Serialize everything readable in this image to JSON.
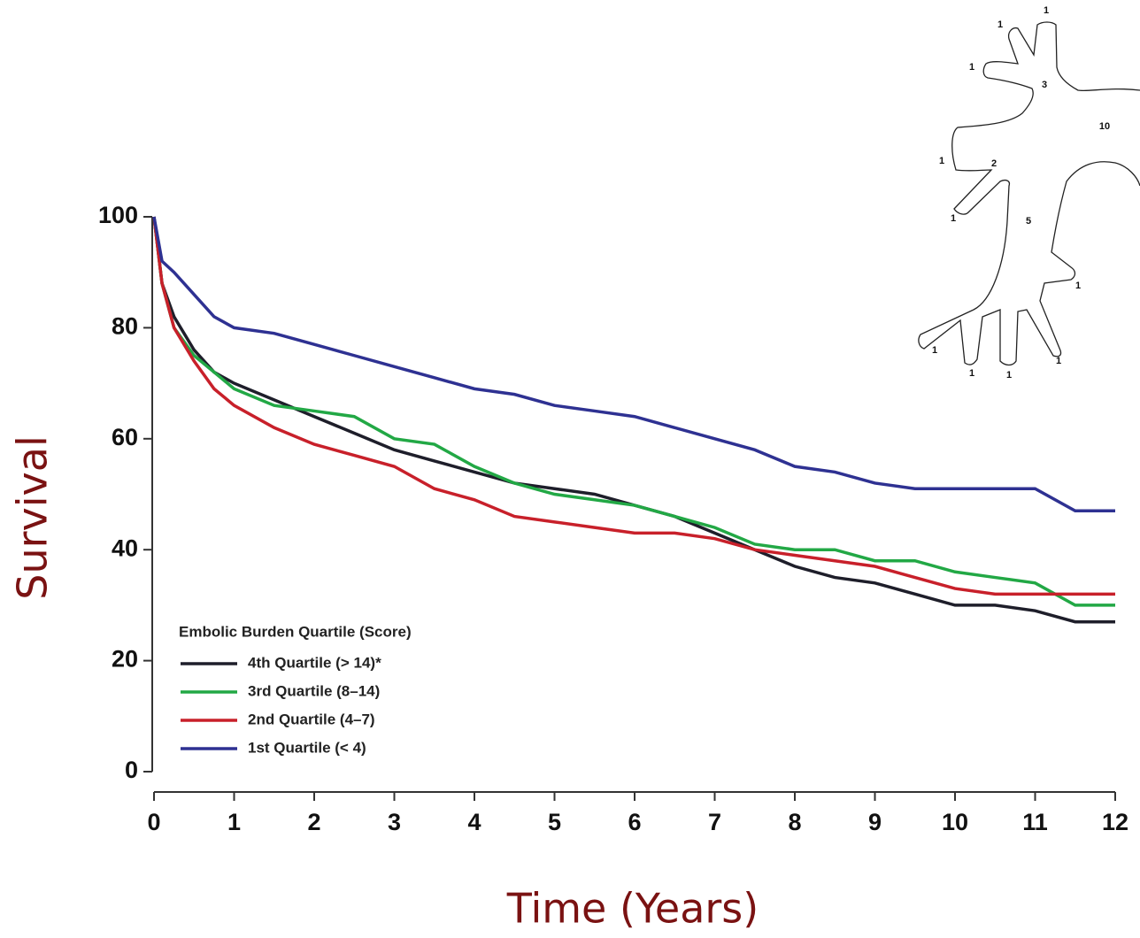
{
  "chart_data": {
    "type": "line",
    "step": true,
    "x_label": "Time (Years)",
    "y_label": "Survival",
    "legend_title": "Embolic Burden Quartile (Score)",
    "legend": "lower left",
    "x": [
      0,
      0.1,
      0.25,
      0.5,
      0.75,
      1,
      1.5,
      2,
      2.5,
      3,
      3.5,
      4,
      4.5,
      5,
      5.5,
      6,
      6.5,
      7,
      7.5,
      8,
      8.5,
      9,
      9.5,
      10,
      10.5,
      11,
      11.5,
      12
    ],
    "series": [
      {
        "name": "4th Quartile (> 14)*",
        "color": "#1e1e2a",
        "values": [
          100,
          88,
          82,
          76,
          72,
          70,
          67,
          64,
          61,
          58,
          56,
          54,
          52,
          51,
          50,
          48,
          46,
          43,
          40,
          37,
          35,
          34,
          32,
          30,
          30,
          29,
          27,
          27
        ]
      },
      {
        "name": "3rd Quartile (8–14)",
        "color": "#22a845",
        "values": [
          100,
          88,
          80,
          75,
          72,
          69,
          66,
          65,
          64,
          60,
          59,
          55,
          52,
          50,
          49,
          48,
          46,
          44,
          41,
          40,
          40,
          38,
          38,
          36,
          35,
          34,
          30,
          30
        ]
      },
      {
        "name": "2nd Quartile (4–7)",
        "color": "#c8202a",
        "values": [
          100,
          88,
          80,
          74,
          69,
          66,
          62,
          59,
          57,
          55,
          51,
          49,
          46,
          45,
          44,
          43,
          43,
          42,
          40,
          39,
          38,
          37,
          35,
          33,
          32,
          32,
          32,
          32
        ]
      },
      {
        "name": "1st Quartile (< 4)",
        "color": "#2e3192",
        "values": [
          100,
          92,
          90,
          86,
          82,
          80,
          79,
          77,
          75,
          73,
          71,
          69,
          68,
          66,
          65,
          64,
          62,
          60,
          58,
          55,
          54,
          52,
          51,
          51,
          51,
          51,
          47,
          47
        ]
      }
    ],
    "xlim": [
      0,
      12
    ],
    "xticks": [
      0,
      1,
      2,
      3,
      4,
      5,
      6,
      7,
      8,
      9,
      10,
      11,
      12
    ],
    "ylim": [
      0,
      100
    ],
    "yticks": [
      0,
      20,
      40,
      60,
      80,
      100
    ],
    "grid": false
  },
  "diagram": {
    "labels": [
      "1",
      "1",
      "1",
      "3",
      "10",
      "1",
      "2",
      "1",
      "5",
      "1",
      "1",
      "1",
      "1",
      "1"
    ]
  }
}
